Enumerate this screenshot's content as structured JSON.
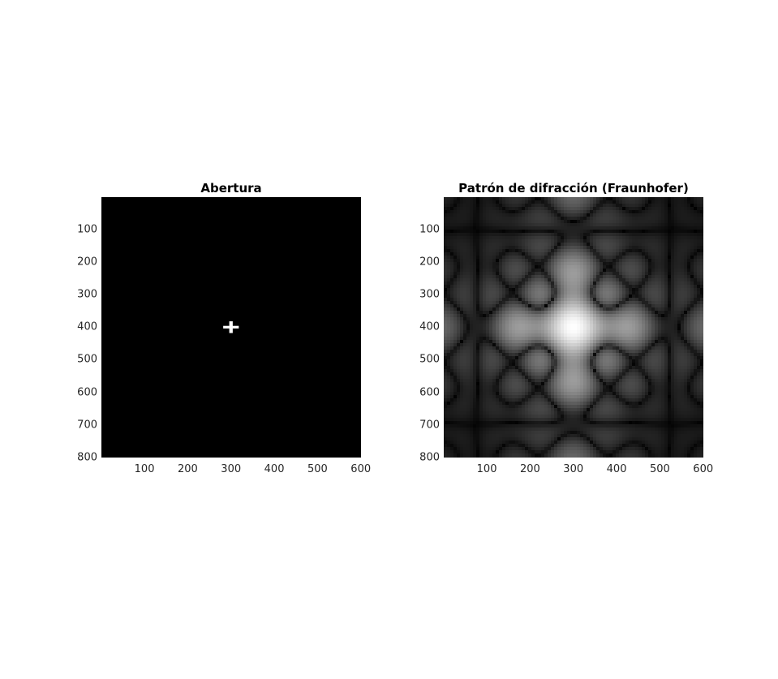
{
  "figure": {
    "background": "#ffffff"
  },
  "chart_data": [
    {
      "type": "heatmap",
      "title": "Abertura",
      "colormap": "gray",
      "xlim": [
        0.5,
        600.5
      ],
      "ylim": [
        0.5,
        800.5
      ],
      "y_reversed": true,
      "xticks": [
        100,
        200,
        300,
        400,
        500,
        600
      ],
      "yticks": [
        100,
        200,
        300,
        400,
        500,
        600,
        700,
        800
      ],
      "xlabel": "",
      "ylabel": "",
      "features": [
        {
          "shape": "cross",
          "center": [
            300,
            400
          ],
          "arm_length": 36,
          "arm_width": 8,
          "value": 1
        }
      ],
      "background_value": 0
    },
    {
      "type": "heatmap",
      "title": "Patrón de difracción (Fraunhofer)",
      "colormap": "gray",
      "xlim": [
        0.5,
        600.5
      ],
      "ylim": [
        0.5,
        800.5
      ],
      "y_reversed": true,
      "xticks": [
        100,
        200,
        300,
        400,
        500,
        600
      ],
      "yticks": [
        100,
        200,
        300,
        400,
        500,
        600,
        700,
        800
      ],
      "xlabel": "",
      "ylabel": "",
      "peak_center": [
        300,
        400
      ],
      "peak_value": 1,
      "fringe_period": 50,
      "background_value": 0
    }
  ]
}
